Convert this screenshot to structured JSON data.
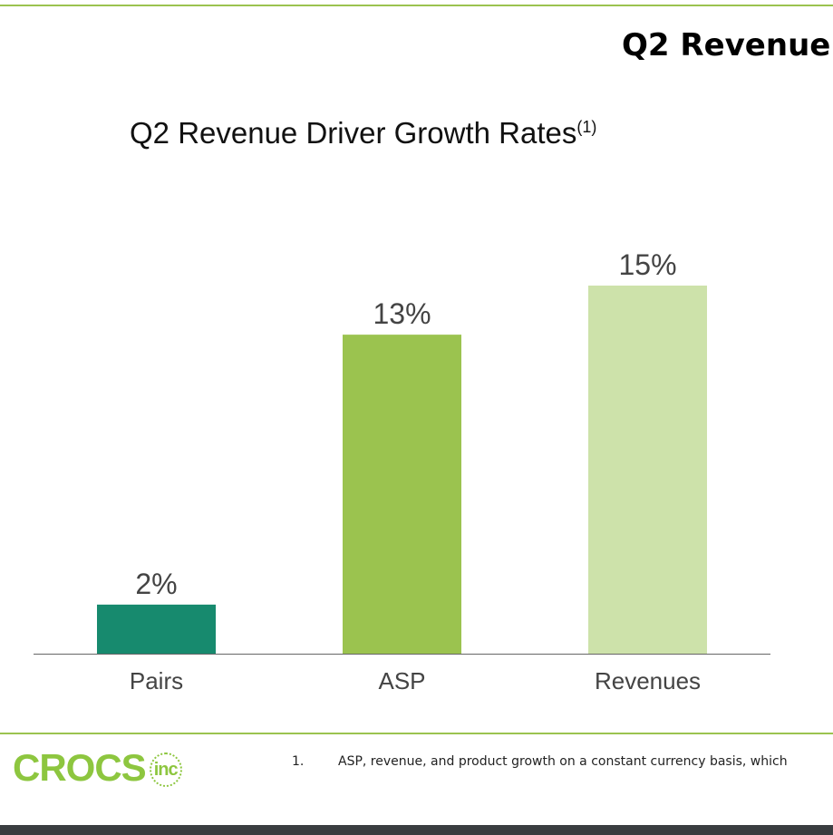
{
  "slide_title": "Q2 Revenue",
  "chart_data": {
    "type": "bar",
    "title": "Q2 Revenue Driver Growth Rates",
    "title_superscript": "(1)",
    "categories": [
      "Pairs",
      "ASP",
      "Revenues"
    ],
    "values": [
      2,
      13,
      15
    ],
    "data_labels": [
      "2%",
      "13%",
      "15%"
    ],
    "colors": [
      "#178a6e",
      "#9bc34f",
      "#cde2aa"
    ],
    "ylim": [
      0,
      15
    ],
    "grid": false
  },
  "footnote": {
    "number": "1.",
    "text": "ASP, revenue, and product growth on a constant currency basis, which"
  },
  "logo": {
    "text": "CROCS",
    "suffix": "inc"
  }
}
